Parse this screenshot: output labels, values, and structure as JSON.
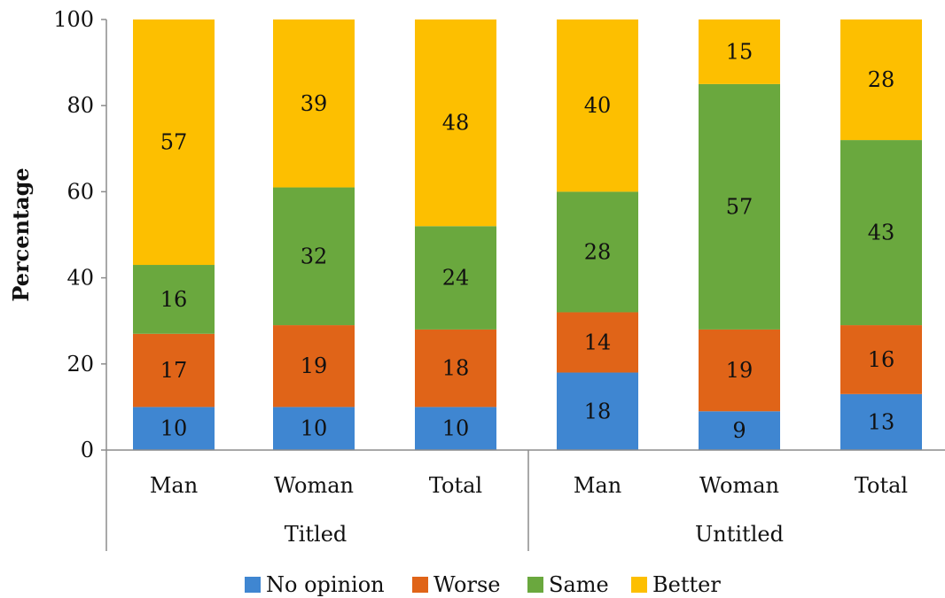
{
  "chart_data": {
    "type": "bar",
    "stacked": true,
    "title": "",
    "xlabel": "",
    "ylabel": "Percentage",
    "ylim": [
      0,
      100
    ],
    "yticks": [
      "0",
      "20",
      "40",
      "60",
      "80",
      "100"
    ],
    "grid": false,
    "legend_position": "bottom",
    "categories": [
      "Man",
      "Woman",
      "Total",
      "Man",
      "Woman",
      "Total"
    ],
    "groups": [
      {
        "label": "Titled",
        "categories": [
          "Man",
          "Woman",
          "Total"
        ]
      },
      {
        "label": "Untitled",
        "categories": [
          "Man",
          "Woman",
          "Total"
        ]
      }
    ],
    "series": [
      {
        "name": "No opinion",
        "color": "#3f86d1",
        "values": [
          10,
          10,
          10,
          18,
          9,
          13
        ]
      },
      {
        "name": "Worse",
        "color": "#e06418",
        "values": [
          17,
          19,
          18,
          14,
          19,
          16
        ]
      },
      {
        "name": "Same",
        "color": "#6aa83e",
        "values": [
          16,
          32,
          24,
          28,
          57,
          43
        ]
      },
      {
        "name": "Better",
        "color": "#fdbf00",
        "values": [
          57,
          39,
          48,
          40,
          15,
          28
        ]
      }
    ]
  }
}
